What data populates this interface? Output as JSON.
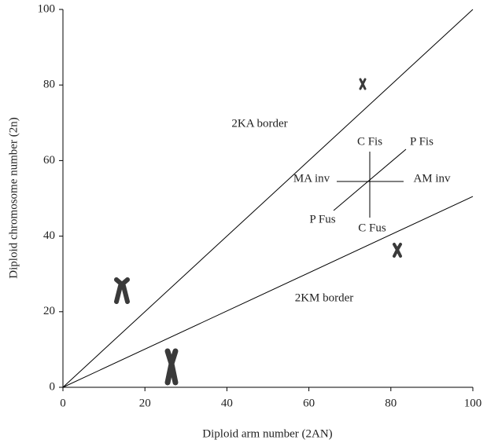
{
  "chart_data": {
    "type": "line",
    "x_label": "Diploid arm number (2AN)",
    "y_label": "Diploid chromosome number (2n)",
    "x": [
      0,
      100
    ],
    "series": [
      {
        "name": "2KA border",
        "color": "#000000",
        "values": [
          0,
          100
        ]
      },
      {
        "name": "2KM border",
        "color": "#000000",
        "values": [
          0,
          50.5
        ]
      }
    ],
    "annotations": [
      "C Fis",
      "P Fis",
      "MA inv",
      "AM inv",
      "P Fus",
      "C Fus"
    ],
    "xlim": [
      0,
      100
    ],
    "ylim": [
      0,
      100
    ],
    "xticks": [
      0,
      20,
      40,
      60,
      80,
      100
    ],
    "yticks": [
      0,
      20,
      40,
      60,
      80,
      100
    ],
    "grid": false
  }
}
